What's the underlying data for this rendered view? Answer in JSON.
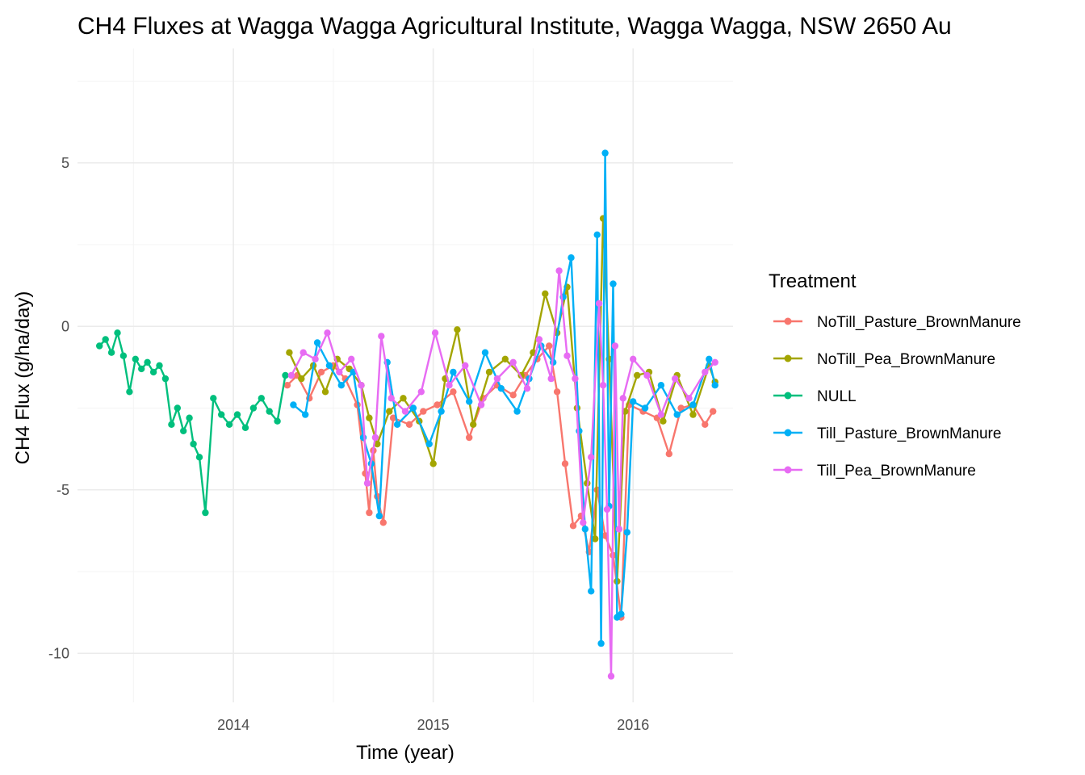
{
  "chart_data": {
    "type": "line",
    "title": "CH4 Fluxes at Wagga Wagga Agricultural Institute, Wagga Wagga, NSW 2650 Au",
    "xlabel": "Time (year)",
    "ylabel": "CH4 Flux (g/ha/day)",
    "x_ticks": [
      "2014",
      "2015",
      "2016"
    ],
    "x_tick_values": [
      2014.0,
      2015.0,
      2016.0
    ],
    "y_ticks": [
      "5",
      "0",
      "-5",
      "-10"
    ],
    "y_tick_values": [
      5,
      0,
      -5,
      -10
    ],
    "xlim": [
      2013.22,
      2016.5
    ],
    "ylim": [
      -11.5,
      8.5
    ],
    "grid": true,
    "legend": {
      "title": "Treatment",
      "placement": "right"
    },
    "series": [
      {
        "name": "NoTill_Pasture_BrownManure",
        "color": "#F8766D",
        "x": [
          2014.27,
          2014.32,
          2014.38,
          2014.44,
          2014.5,
          2014.56,
          2014.62,
          2014.66,
          2014.68,
          2014.7,
          2014.72,
          2014.75,
          2014.8,
          2014.88,
          2014.95,
          2015.02,
          2015.1,
          2015.18,
          2015.25,
          2015.32,
          2015.4,
          2015.46,
          2015.52,
          2015.58,
          2015.62,
          2015.66,
          2015.7,
          2015.74,
          2015.78,
          2015.82,
          2015.86,
          2015.9,
          2015.94,
          2015.98,
          2016.05,
          2016.12,
          2016.18,
          2016.24,
          2016.3,
          2016.36,
          2016.4
        ],
        "y": [
          -1.8,
          -1.5,
          -2.2,
          -1.4,
          -1.2,
          -1.6,
          -2.4,
          -4.5,
          -5.7,
          -3.8,
          -5.2,
          -6.0,
          -2.8,
          -3.0,
          -2.6,
          -2.4,
          -2.0,
          -3.4,
          -2.2,
          -1.8,
          -2.1,
          -1.5,
          -1.0,
          -0.6,
          -2.0,
          -4.2,
          -6.1,
          -5.8,
          -6.9,
          -5.0,
          -6.4,
          -7.0,
          -8.9,
          -2.4,
          -2.6,
          -2.8,
          -3.9,
          -2.5,
          -2.4,
          -3.0,
          -2.6
        ]
      },
      {
        "name": "NoTill_Pea_BrownManure",
        "color": "#A3A500",
        "x": [
          2014.28,
          2014.34,
          2014.4,
          2014.46,
          2014.52,
          2014.58,
          2014.64,
          2014.68,
          2014.72,
          2014.78,
          2014.85,
          2014.93,
          2015.0,
          2015.06,
          2015.12,
          2015.2,
          2015.28,
          2015.36,
          2015.44,
          2015.5,
          2015.56,
          2015.62,
          2015.67,
          2015.72,
          2015.77,
          2015.81,
          2015.85,
          2015.88,
          2015.92,
          2015.96,
          2016.02,
          2016.08,
          2016.15,
          2016.22,
          2016.3,
          2016.38,
          2016.41
        ],
        "y": [
          -0.8,
          -1.6,
          -1.2,
          -2.0,
          -1.0,
          -1.3,
          -1.8,
          -2.8,
          -3.6,
          -2.6,
          -2.2,
          -2.9,
          -4.2,
          -1.6,
          -0.1,
          -3.0,
          -1.4,
          -1.0,
          -1.5,
          -0.8,
          1.0,
          -0.2,
          1.2,
          -2.5,
          -4.8,
          -6.5,
          3.3,
          -1.0,
          -7.8,
          -2.6,
          -1.5,
          -1.4,
          -2.9,
          -1.5,
          -2.7,
          -1.2,
          -1.7
        ]
      },
      {
        "name": "NULL",
        "color": "#00BF7D",
        "x": [
          2013.33,
          2013.36,
          2013.39,
          2013.42,
          2013.45,
          2013.48,
          2013.51,
          2013.54,
          2013.57,
          2013.6,
          2013.63,
          2013.66,
          2013.69,
          2013.72,
          2013.75,
          2013.78,
          2013.8,
          2013.83,
          2013.86,
          2013.9,
          2013.94,
          2013.98,
          2014.02,
          2014.06,
          2014.1,
          2014.14,
          2014.18,
          2014.22,
          2014.26
        ],
        "y": [
          -0.6,
          -0.4,
          -0.8,
          -0.2,
          -0.9,
          -2.0,
          -1.0,
          -1.3,
          -1.1,
          -1.4,
          -1.2,
          -1.6,
          -3.0,
          -2.5,
          -3.2,
          -2.8,
          -3.6,
          -4.0,
          -5.7,
          -2.2,
          -2.7,
          -3.0,
          -2.7,
          -3.1,
          -2.5,
          -2.2,
          -2.6,
          -2.9,
          -1.5
        ]
      },
      {
        "name": "Till_Pasture_BrownManure",
        "color": "#00B0F6",
        "x": [
          2014.3,
          2014.36,
          2014.42,
          2014.48,
          2014.54,
          2014.6,
          2014.65,
          2014.69,
          2014.73,
          2014.77,
          2014.82,
          2014.9,
          2014.98,
          2015.04,
          2015.1,
          2015.18,
          2015.26,
          2015.34,
          2015.42,
          2015.48,
          2015.54,
          2015.6,
          2015.65,
          2015.69,
          2015.73,
          2015.76,
          2015.79,
          2015.82,
          2015.84,
          2015.86,
          2015.88,
          2015.9,
          2015.92,
          2015.94,
          2015.97,
          2016.0,
          2016.06,
          2016.14,
          2016.22,
          2016.3,
          2016.38,
          2016.41
        ],
        "y": [
          -2.4,
          -2.7,
          -0.5,
          -1.2,
          -1.8,
          -1.4,
          -3.4,
          -4.2,
          -5.8,
          -1.1,
          -3.0,
          -2.5,
          -3.6,
          -2.6,
          -1.4,
          -2.3,
          -0.8,
          -1.9,
          -2.6,
          -1.6,
          -0.6,
          -1.1,
          0.9,
          2.1,
          -3.2,
          -6.2,
          -8.1,
          2.8,
          -9.7,
          5.3,
          -5.5,
          1.3,
          -8.9,
          -8.8,
          -6.3,
          -2.3,
          -2.5,
          -1.8,
          -2.7,
          -2.4,
          -1.0,
          -1.8
        ]
      },
      {
        "name": "Till_Pea_BrownManure",
        "color": "#E76BF3",
        "x": [
          2014.29,
          2014.35,
          2014.41,
          2014.47,
          2014.53,
          2014.59,
          2014.64,
          2014.67,
          2014.71,
          2014.74,
          2014.79,
          2014.86,
          2014.94,
          2015.01,
          2015.08,
          2015.16,
          2015.24,
          2015.32,
          2015.4,
          2015.47,
          2015.53,
          2015.59,
          2015.63,
          2015.67,
          2015.71,
          2015.75,
          2015.79,
          2015.83,
          2015.85,
          2015.87,
          2015.89,
          2015.91,
          2015.93,
          2015.95,
          2016.0,
          2016.07,
          2016.14,
          2016.21,
          2016.28,
          2016.36,
          2016.41
        ],
        "y": [
          -1.5,
          -0.8,
          -1.0,
          -0.2,
          -1.4,
          -1.0,
          -1.8,
          -4.8,
          -3.4,
          -0.3,
          -2.2,
          -2.6,
          -2.0,
          -0.2,
          -1.8,
          -1.2,
          -2.4,
          -1.6,
          -1.1,
          -1.9,
          -0.4,
          -1.6,
          1.7,
          -0.9,
          -1.6,
          -6.0,
          -4.0,
          0.7,
          -1.8,
          -5.6,
          -10.7,
          -0.6,
          -6.2,
          -2.2,
          -1.0,
          -1.5,
          -2.7,
          -1.6,
          -2.2,
          -1.4,
          -1.1
        ]
      }
    ]
  }
}
